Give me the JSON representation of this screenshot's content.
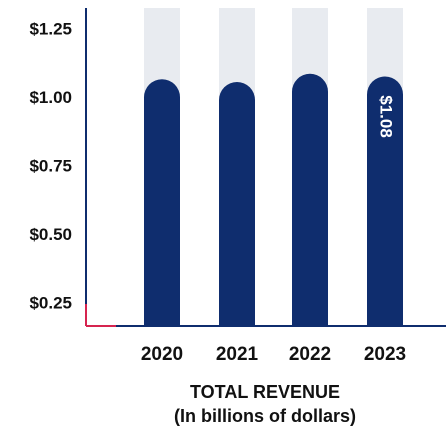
{
  "chart_data": {
    "type": "bar",
    "title": "TOTAL REVENUE",
    "subtitle": "(In billions of dollars)",
    "categories": [
      "2020",
      "2021",
      "2022",
      "2023"
    ],
    "values": [
      1.07,
      1.06,
      1.09,
      1.08
    ],
    "value_labels": [
      null,
      null,
      null,
      "$1.08"
    ],
    "color": "#0f2d6e",
    "ylim": [
      0.17,
      1.33
    ],
    "yticks": [
      {
        "value": 0.25,
        "label": "$0.25"
      },
      {
        "value": 0.5,
        "label": "$0.50"
      },
      {
        "value": 0.75,
        "label": "$0.75"
      },
      {
        "value": 1.0,
        "label": "$1.00"
      },
      {
        "value": 1.25,
        "label": "$1.25"
      }
    ],
    "grid": false
  }
}
